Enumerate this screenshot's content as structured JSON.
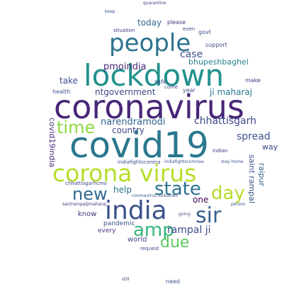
{
  "words": [
    {
      "text": "coronavirus",
      "color": "#482677"
    },
    {
      "text": "covid19",
      "color": "#2a788e"
    },
    {
      "text": "lockdown",
      "color": "#21918c"
    },
    {
      "text": "corona virus",
      "color": "#b5de2b"
    },
    {
      "text": "people",
      "color": "#2c728e"
    },
    {
      "text": "india",
      "color": "#3b528b"
    },
    {
      "text": "state",
      "color": "#2c728e"
    },
    {
      "text": "time",
      "color": "#8fd744"
    },
    {
      "text": "day",
      "color": "#b5de2b"
    },
    {
      "text": "sir",
      "color": "#355f8d"
    },
    {
      "text": "new",
      "color": "#31688e"
    },
    {
      "text": "amp",
      "color": "#35b779"
    },
    {
      "text": "due",
      "color": "#5ec962"
    },
    {
      "text": "chhattisgarh",
      "color": "#404688"
    },
    {
      "text": "narendramodi",
      "color": "#33638d"
    },
    {
      "text": "rampal ji",
      "color": "#3e4989"
    },
    {
      "text": "spread",
      "color": "#3b528b"
    },
    {
      "text": "today",
      "color": "#31688e"
    },
    {
      "text": "case",
      "color": "#3b528b"
    },
    {
      "text": "pmoindia",
      "color": "#482878"
    },
    {
      "text": "bhupeshbaghel",
      "color": "#26828e"
    },
    {
      "text": "ntgovernment",
      "color": "#3e4989"
    },
    {
      "text": "ji maharaj",
      "color": "#2a788e"
    },
    {
      "text": "take",
      "color": "#3b528b"
    },
    {
      "text": "country",
      "color": "#3e4989"
    },
    {
      "text": "help",
      "color": "#2c728e"
    },
    {
      "text": "one",
      "color": "#440154"
    },
    {
      "text": "covid19india",
      "color": "#472d7b"
    },
    {
      "text": "saint rampal",
      "color": "#3b528b"
    },
    {
      "text": "raipur",
      "color": "#33638d"
    },
    {
      "text": "way",
      "color": "#3e4989"
    },
    {
      "text": "know",
      "color": "#46337f"
    },
    {
      "text": "pandemic",
      "color": "#3b528b"
    },
    {
      "text": "world",
      "color": "#3e4989"
    },
    {
      "text": "every",
      "color": "#46337f"
    },
    {
      "text": "need",
      "color": "#3b528b"
    },
    {
      "text": "request",
      "color": "#3e4989"
    },
    {
      "text": "health",
      "color": "#3b528b"
    },
    {
      "text": "safe",
      "color": "#3e4989"
    },
    {
      "text": "year",
      "color": "#3b528b"
    },
    {
      "text": "situation",
      "color": "#46337f"
    },
    {
      "text": "support",
      "color": "#3e4989"
    },
    {
      "text": "make",
      "color": "#46337f"
    },
    {
      "text": "govt",
      "color": "#3b528b"
    },
    {
      "text": "even",
      "color": "#3e4989"
    },
    {
      "text": "please",
      "color": "#46337f"
    },
    {
      "text": "keep",
      "color": "#3b528b"
    },
    {
      "text": "still",
      "color": "#46337f"
    },
    {
      "text": "come",
      "color": "#3e4989"
    },
    {
      "text": "indian",
      "color": "#46337f"
    },
    {
      "text": "stay home",
      "color": "#3b528b"
    },
    {
      "text": "chhattisgarhcmo",
      "color": "#3e4989"
    },
    {
      "text": "santrampaljimaharaj",
      "color": "#46337f"
    },
    {
      "text": "coronavirus lockdown",
      "color": "#3b528b"
    },
    {
      "text": "indiafightscorona",
      "color": "#3e4989"
    },
    {
      "text": "indiafightscoronaa",
      "color": "#3b528b"
    },
    {
      "text": "quarantine",
      "color": "#46337f"
    },
    {
      "text": "going",
      "color": "#3e4989"
    },
    {
      "text": "person",
      "color": "#3b528b"
    }
  ]
}
